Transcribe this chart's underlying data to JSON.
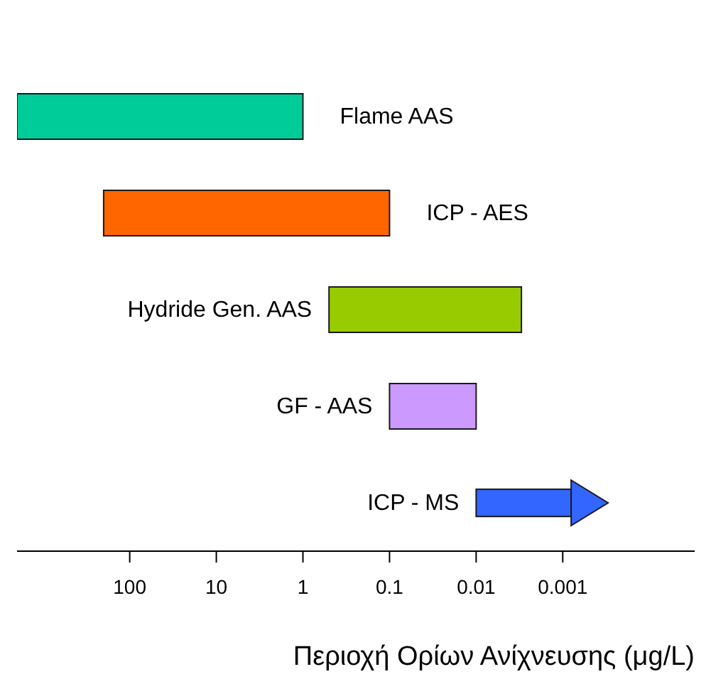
{
  "chart_data": {
    "type": "bar",
    "orientation": "horizontal",
    "log": "x",
    "xlabel": "Περιοχή Ορίων Ανίχνευσης (μg/L)",
    "categories": [
      "Flame AAS",
      "ICP - AES",
      "Hydride Gen. AAS",
      "GF - AAS",
      "ICP - MS"
    ],
    "base": [
      1,
      0.1,
      0.003,
      0.01,
      0.0008
    ],
    "values": [
      1999,
      199.9,
      0.497,
      0.09,
      0.0092
    ],
    "colors": [
      "#00cc99",
      "#ff6600",
      "#99cc00",
      "#cc99ff",
      "#3366ff"
    ],
    "xlim": [
      2000,
      3e-05
    ],
    "xticks": [
      100,
      10,
      1,
      0.1,
      0.01,
      0.001
    ]
  }
}
